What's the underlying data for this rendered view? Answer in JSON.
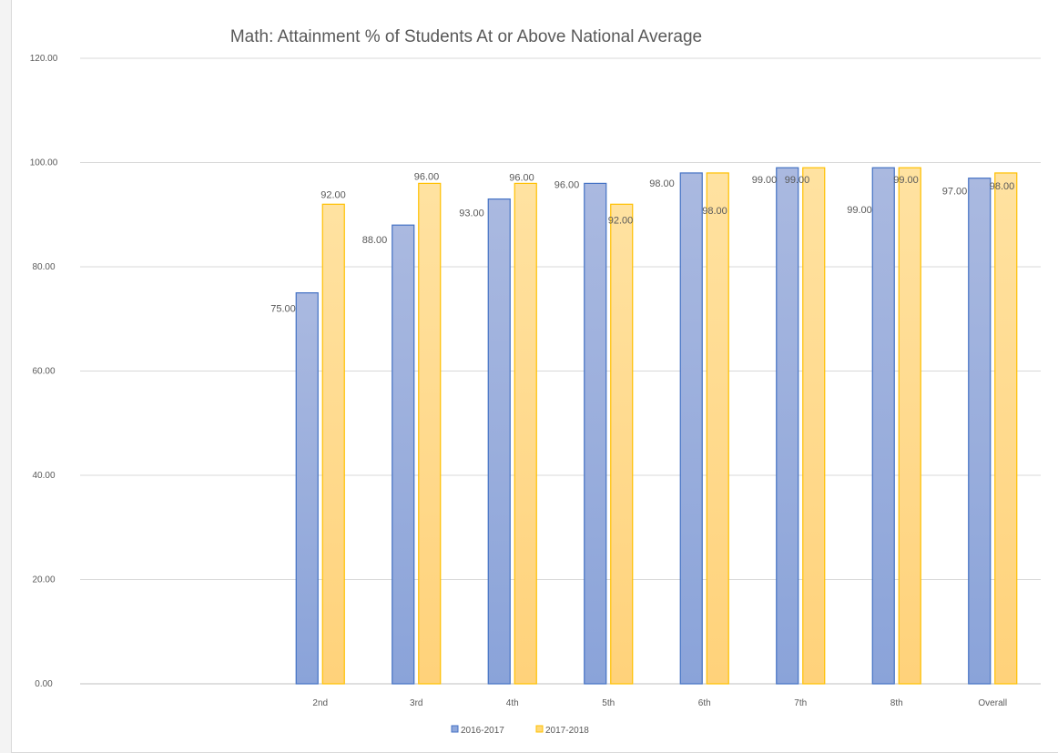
{
  "chart_data": {
    "type": "bar",
    "title": "Math: Attainment % of Students At or Above National Average",
    "xlabel": "",
    "ylabel": "",
    "categories": [
      "",
      "",
      "2nd",
      "3rd",
      "4th",
      "5th",
      "6th",
      "7th",
      "8th",
      "Overall"
    ],
    "series": [
      {
        "name": "2016-2017",
        "color": "#4472c4",
        "values": [
          null,
          null,
          75.0,
          88.0,
          93.0,
          96.0,
          98.0,
          99.0,
          99.0,
          97.0
        ]
      },
      {
        "name": "2017-2018",
        "color": "#ffc000",
        "values": [
          null,
          null,
          92.0,
          96.0,
          96.0,
          92.0,
          98.0,
          99.0,
          99.0,
          98.0
        ]
      }
    ],
    "ylim": [
      0,
      120
    ],
    "yticks": [
      "0.00",
      "20.00",
      "40.00",
      "60.00",
      "80.00",
      "100.00",
      "120.00"
    ],
    "grid": true,
    "legend_position": "bottom",
    "data_labels": true
  }
}
